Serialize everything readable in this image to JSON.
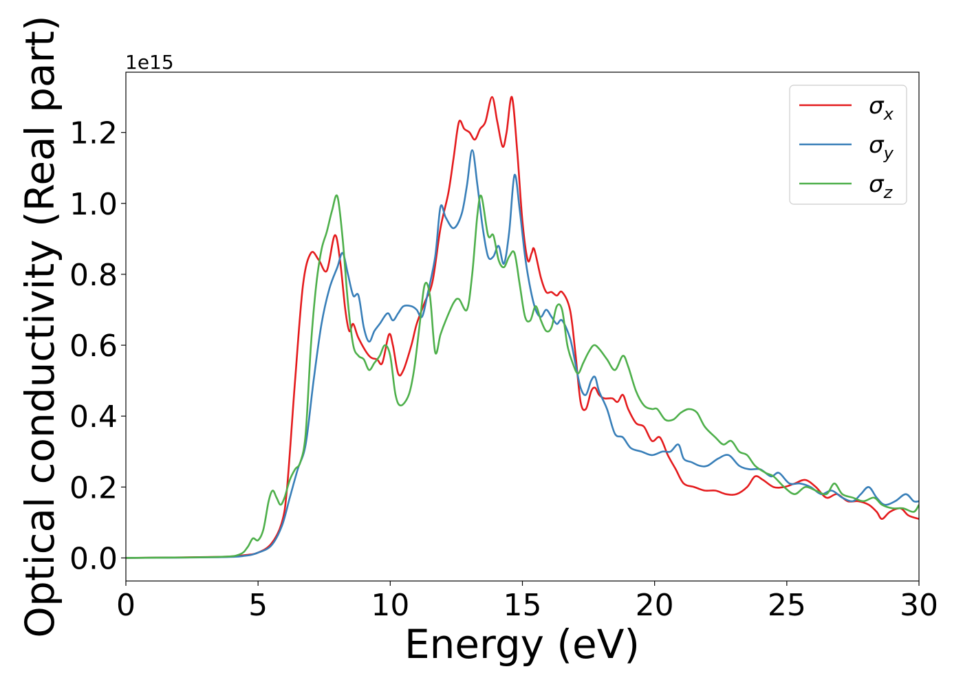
{
  "chart_data": {
    "type": "line",
    "xlabel": "Energy (eV)",
    "ylabel": "Optical conductivity (Real part)",
    "y_offset_text": "1e15",
    "xlim": [
      0,
      30
    ],
    "ylim": [
      -0.065,
      1.37
    ],
    "x_ticks": [
      0,
      5,
      10,
      15,
      20,
      25,
      30
    ],
    "x_tick_labels": [
      "0",
      "5",
      "10",
      "15",
      "20",
      "25",
      "30"
    ],
    "y_ticks": [
      0.0,
      0.2,
      0.4,
      0.6,
      0.8,
      1.0,
      1.2
    ],
    "y_tick_labels": [
      "0.0",
      "0.2",
      "0.4",
      "0.6",
      "0.8",
      "1.0",
      "1.2"
    ],
    "grid": false,
    "legend_position": "top-right",
    "series": [
      {
        "name": "σx",
        "base": "σ",
        "sub": "x",
        "color": "#e41a1c",
        "points": [
          [
            0,
            0
          ],
          [
            3.5,
            0.003
          ],
          [
            4.5,
            0.008
          ],
          [
            5,
            0.015
          ],
          [
            5.5,
            0.04
          ],
          [
            5.9,
            0.1
          ],
          [
            6.1,
            0.2
          ],
          [
            6.4,
            0.5
          ],
          [
            6.7,
            0.77
          ],
          [
            7.0,
            0.86
          ],
          [
            7.3,
            0.84
          ],
          [
            7.6,
            0.81
          ],
          [
            7.9,
            0.91
          ],
          [
            8.1,
            0.84
          ],
          [
            8.3,
            0.7
          ],
          [
            8.45,
            0.64
          ],
          [
            8.6,
            0.66
          ],
          [
            8.8,
            0.62
          ],
          [
            9.2,
            0.57
          ],
          [
            9.5,
            0.56
          ],
          [
            9.7,
            0.55
          ],
          [
            9.95,
            0.63
          ],
          [
            10.1,
            0.6
          ],
          [
            10.3,
            0.52
          ],
          [
            10.5,
            0.53
          ],
          [
            10.8,
            0.6
          ],
          [
            11.0,
            0.66
          ],
          [
            11.3,
            0.72
          ],
          [
            11.6,
            0.78
          ],
          [
            11.9,
            0.93
          ],
          [
            12.2,
            1.03
          ],
          [
            12.4,
            1.13
          ],
          [
            12.6,
            1.23
          ],
          [
            12.8,
            1.21
          ],
          [
            13.0,
            1.2
          ],
          [
            13.2,
            1.18
          ],
          [
            13.4,
            1.21
          ],
          [
            13.6,
            1.23
          ],
          [
            13.85,
            1.3
          ],
          [
            14.05,
            1.23
          ],
          [
            14.25,
            1.16
          ],
          [
            14.4,
            1.2
          ],
          [
            14.6,
            1.3
          ],
          [
            14.8,
            1.15
          ],
          [
            15.0,
            0.95
          ],
          [
            15.2,
            0.84
          ],
          [
            15.35,
            0.86
          ],
          [
            15.45,
            0.87
          ],
          [
            15.7,
            0.79
          ],
          [
            15.9,
            0.75
          ],
          [
            16.1,
            0.75
          ],
          [
            16.3,
            0.74
          ],
          [
            16.5,
            0.75
          ],
          [
            16.8,
            0.7
          ],
          [
            17.0,
            0.58
          ],
          [
            17.2,
            0.44
          ],
          [
            17.4,
            0.42
          ],
          [
            17.6,
            0.47
          ],
          [
            17.75,
            0.48
          ],
          [
            17.9,
            0.46
          ],
          [
            18.1,
            0.45
          ],
          [
            18.4,
            0.45
          ],
          [
            18.6,
            0.44
          ],
          [
            18.8,
            0.46
          ],
          [
            19.0,
            0.42
          ],
          [
            19.3,
            0.38
          ],
          [
            19.6,
            0.37
          ],
          [
            19.9,
            0.33
          ],
          [
            20.2,
            0.34
          ],
          [
            20.5,
            0.29
          ],
          [
            20.8,
            0.25
          ],
          [
            21.1,
            0.21
          ],
          [
            21.5,
            0.2
          ],
          [
            21.9,
            0.19
          ],
          [
            22.3,
            0.19
          ],
          [
            22.7,
            0.18
          ],
          [
            23.1,
            0.18
          ],
          [
            23.5,
            0.2
          ],
          [
            23.8,
            0.23
          ],
          [
            24.1,
            0.22
          ],
          [
            24.5,
            0.2
          ],
          [
            24.9,
            0.2
          ],
          [
            25.3,
            0.21
          ],
          [
            25.7,
            0.22
          ],
          [
            26.1,
            0.2
          ],
          [
            26.5,
            0.17
          ],
          [
            26.9,
            0.18
          ],
          [
            27.3,
            0.16
          ],
          [
            27.7,
            0.16
          ],
          [
            28.1,
            0.15
          ],
          [
            28.4,
            0.13
          ],
          [
            28.6,
            0.11
          ],
          [
            28.9,
            0.13
          ],
          [
            29.3,
            0.14
          ],
          [
            29.6,
            0.12
          ],
          [
            30,
            0.11
          ]
        ]
      },
      {
        "name": "σy",
        "base": "σ",
        "sub": "y",
        "color": "#377eb8",
        "points": [
          [
            0,
            0
          ],
          [
            3.5,
            0.002
          ],
          [
            4.5,
            0.006
          ],
          [
            5,
            0.015
          ],
          [
            5.5,
            0.035
          ],
          [
            5.9,
            0.09
          ],
          [
            6.2,
            0.17
          ],
          [
            6.5,
            0.25
          ],
          [
            6.8,
            0.32
          ],
          [
            7.1,
            0.5
          ],
          [
            7.4,
            0.66
          ],
          [
            7.7,
            0.76
          ],
          [
            8.0,
            0.82
          ],
          [
            8.2,
            0.86
          ],
          [
            8.4,
            0.8
          ],
          [
            8.6,
            0.74
          ],
          [
            8.8,
            0.74
          ],
          [
            9.0,
            0.65
          ],
          [
            9.2,
            0.61
          ],
          [
            9.4,
            0.64
          ],
          [
            9.6,
            0.66
          ],
          [
            9.9,
            0.69
          ],
          [
            10.1,
            0.67
          ],
          [
            10.3,
            0.69
          ],
          [
            10.5,
            0.71
          ],
          [
            10.8,
            0.71
          ],
          [
            11.0,
            0.7
          ],
          [
            11.2,
            0.68
          ],
          [
            11.4,
            0.74
          ],
          [
            11.7,
            0.85
          ],
          [
            11.9,
            0.99
          ],
          [
            12.1,
            0.96
          ],
          [
            12.4,
            0.93
          ],
          [
            12.7,
            0.97
          ],
          [
            12.9,
            1.05
          ],
          [
            13.1,
            1.15
          ],
          [
            13.3,
            1.05
          ],
          [
            13.5,
            0.93
          ],
          [
            13.7,
            0.85
          ],
          [
            13.9,
            0.85
          ],
          [
            14.1,
            0.88
          ],
          [
            14.3,
            0.83
          ],
          [
            14.5,
            0.92
          ],
          [
            14.7,
            1.08
          ],
          [
            14.9,
            0.98
          ],
          [
            15.1,
            0.85
          ],
          [
            15.3,
            0.76
          ],
          [
            15.5,
            0.7
          ],
          [
            15.7,
            0.68
          ],
          [
            15.9,
            0.7
          ],
          [
            16.1,
            0.68
          ],
          [
            16.3,
            0.66
          ],
          [
            16.5,
            0.67
          ],
          [
            16.8,
            0.62
          ],
          [
            17.0,
            0.55
          ],
          [
            17.2,
            0.48
          ],
          [
            17.4,
            0.46
          ],
          [
            17.6,
            0.5
          ],
          [
            17.75,
            0.51
          ],
          [
            17.9,
            0.47
          ],
          [
            18.2,
            0.42
          ],
          [
            18.5,
            0.35
          ],
          [
            18.8,
            0.34
          ],
          [
            19.1,
            0.31
          ],
          [
            19.5,
            0.3
          ],
          [
            19.9,
            0.29
          ],
          [
            20.3,
            0.3
          ],
          [
            20.6,
            0.3
          ],
          [
            20.9,
            0.32
          ],
          [
            21.1,
            0.28
          ],
          [
            21.4,
            0.27
          ],
          [
            21.7,
            0.26
          ],
          [
            22.0,
            0.26
          ],
          [
            22.4,
            0.28
          ],
          [
            22.8,
            0.29
          ],
          [
            23.2,
            0.26
          ],
          [
            23.6,
            0.25
          ],
          [
            24.0,
            0.25
          ],
          [
            24.4,
            0.23
          ],
          [
            24.7,
            0.24
          ],
          [
            25.1,
            0.21
          ],
          [
            25.5,
            0.21
          ],
          [
            25.9,
            0.2
          ],
          [
            26.3,
            0.18
          ],
          [
            26.7,
            0.19
          ],
          [
            27.1,
            0.17
          ],
          [
            27.5,
            0.16
          ],
          [
            27.8,
            0.18
          ],
          [
            28.1,
            0.2
          ],
          [
            28.4,
            0.17
          ],
          [
            28.7,
            0.15
          ],
          [
            29.1,
            0.16
          ],
          [
            29.5,
            0.18
          ],
          [
            29.8,
            0.16
          ],
          [
            30,
            0.16
          ]
        ]
      },
      {
        "name": "σz",
        "base": "σ",
        "sub": "z",
        "color": "#4daf4a",
        "points": [
          [
            0,
            0
          ],
          [
            3.5,
            0.003
          ],
          [
            4.3,
            0.01
          ],
          [
            4.6,
            0.03
          ],
          [
            4.8,
            0.055
          ],
          [
            5.0,
            0.05
          ],
          [
            5.2,
            0.08
          ],
          [
            5.4,
            0.16
          ],
          [
            5.55,
            0.19
          ],
          [
            5.7,
            0.17
          ],
          [
            5.85,
            0.15
          ],
          [
            6.0,
            0.17
          ],
          [
            6.2,
            0.22
          ],
          [
            6.4,
            0.25
          ],
          [
            6.6,
            0.27
          ],
          [
            6.8,
            0.35
          ],
          [
            7.0,
            0.6
          ],
          [
            7.2,
            0.77
          ],
          [
            7.4,
            0.87
          ],
          [
            7.6,
            0.92
          ],
          [
            7.8,
            0.98
          ],
          [
            8.0,
            1.02
          ],
          [
            8.2,
            0.9
          ],
          [
            8.4,
            0.72
          ],
          [
            8.6,
            0.6
          ],
          [
            8.8,
            0.57
          ],
          [
            9.0,
            0.56
          ],
          [
            9.2,
            0.53
          ],
          [
            9.4,
            0.55
          ],
          [
            9.6,
            0.57
          ],
          [
            9.8,
            0.6
          ],
          [
            10.0,
            0.57
          ],
          [
            10.2,
            0.46
          ],
          [
            10.4,
            0.43
          ],
          [
            10.7,
            0.46
          ],
          [
            10.9,
            0.53
          ],
          [
            11.1,
            0.65
          ],
          [
            11.3,
            0.77
          ],
          [
            11.5,
            0.74
          ],
          [
            11.7,
            0.58
          ],
          [
            11.9,
            0.63
          ],
          [
            12.1,
            0.67
          ],
          [
            12.4,
            0.72
          ],
          [
            12.6,
            0.73
          ],
          [
            12.9,
            0.7
          ],
          [
            13.1,
            0.8
          ],
          [
            13.3,
            0.97
          ],
          [
            13.45,
            1.02
          ],
          [
            13.7,
            0.91
          ],
          [
            13.9,
            0.91
          ],
          [
            14.1,
            0.84
          ],
          [
            14.3,
            0.82
          ],
          [
            14.5,
            0.85
          ],
          [
            14.7,
            0.86
          ],
          [
            14.9,
            0.77
          ],
          [
            15.1,
            0.68
          ],
          [
            15.3,
            0.67
          ],
          [
            15.5,
            0.71
          ],
          [
            15.7,
            0.67
          ],
          [
            15.9,
            0.64
          ],
          [
            16.1,
            0.65
          ],
          [
            16.3,
            0.71
          ],
          [
            16.5,
            0.7
          ],
          [
            16.7,
            0.6
          ],
          [
            16.9,
            0.55
          ],
          [
            17.1,
            0.52
          ],
          [
            17.3,
            0.55
          ],
          [
            17.5,
            0.58
          ],
          [
            17.7,
            0.6
          ],
          [
            17.9,
            0.59
          ],
          [
            18.2,
            0.56
          ],
          [
            18.5,
            0.53
          ],
          [
            18.8,
            0.57
          ],
          [
            19.0,
            0.54
          ],
          [
            19.3,
            0.47
          ],
          [
            19.6,
            0.43
          ],
          [
            19.9,
            0.42
          ],
          [
            20.1,
            0.42
          ],
          [
            20.4,
            0.39
          ],
          [
            20.7,
            0.39
          ],
          [
            21.0,
            0.41
          ],
          [
            21.3,
            0.42
          ],
          [
            21.6,
            0.41
          ],
          [
            21.9,
            0.37
          ],
          [
            22.3,
            0.34
          ],
          [
            22.6,
            0.32
          ],
          [
            22.9,
            0.33
          ],
          [
            23.2,
            0.3
          ],
          [
            23.5,
            0.29
          ],
          [
            23.8,
            0.26
          ],
          [
            24.2,
            0.24
          ],
          [
            24.5,
            0.23
          ],
          [
            24.9,
            0.2
          ],
          [
            25.3,
            0.18
          ],
          [
            25.7,
            0.2
          ],
          [
            26.1,
            0.19
          ],
          [
            26.5,
            0.18
          ],
          [
            26.8,
            0.21
          ],
          [
            27.1,
            0.18
          ],
          [
            27.5,
            0.17
          ],
          [
            27.9,
            0.16
          ],
          [
            28.3,
            0.17
          ],
          [
            28.6,
            0.15
          ],
          [
            29.0,
            0.14
          ],
          [
            29.4,
            0.14
          ],
          [
            29.8,
            0.13
          ],
          [
            30,
            0.15
          ]
        ]
      }
    ]
  }
}
